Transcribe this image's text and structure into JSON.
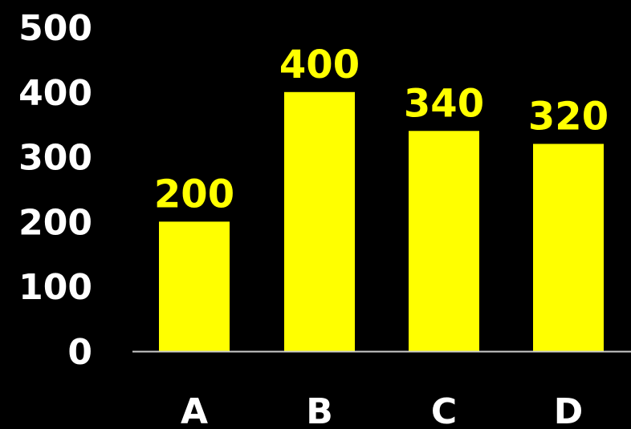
{
  "chart_data": {
    "type": "bar",
    "categories": [
      "A",
      "B",
      "C",
      "D"
    ],
    "values": [
      200,
      400,
      340,
      320
    ],
    "data_labels": [
      "200",
      "400",
      "340",
      "320"
    ],
    "ylim": [
      0,
      500
    ],
    "yticks": [
      0,
      100,
      200,
      300,
      400,
      500
    ],
    "ytick_labels": [
      "0",
      "100",
      "200",
      "300",
      "400",
      "500"
    ],
    "title": "",
    "xlabel": "",
    "ylabel": "",
    "grid": false,
    "legend": "none"
  },
  "colors": {
    "background": "#000000",
    "bar": "#ffff00",
    "data_label": "#ffff00",
    "axis_line": "#cccccc",
    "tick_label": "#ffffff"
  }
}
